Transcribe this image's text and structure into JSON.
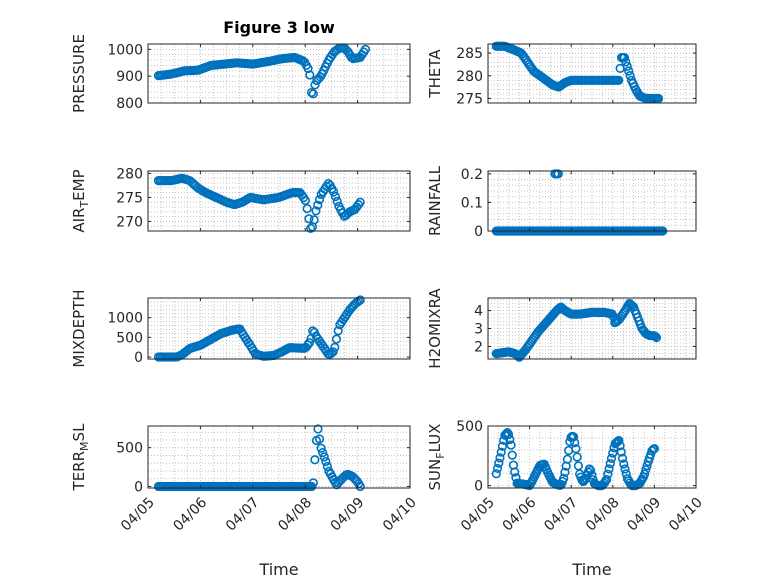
{
  "figure": {
    "title": "Figure 3 low",
    "marker_color": "#0072BD"
  },
  "chart_data": [
    {
      "type": "scatter",
      "title": "Figure 3 low",
      "ylabel": "PRESSURE",
      "ylabel_sub": "",
      "ylabel_end": "",
      "xlabel": "",
      "xlim": [
        0,
        5
      ],
      "ylim": [
        800,
        1020
      ],
      "yticks": [
        800,
        900,
        1000
      ],
      "show_xticklabels": false,
      "grid": true,
      "x_unit": "days since 04/05",
      "knots": [
        [
          0.2,
          902
        ],
        [
          0.45,
          908
        ],
        [
          0.7,
          920
        ],
        [
          0.95,
          922
        ],
        [
          1.2,
          940
        ],
        [
          1.45,
          945
        ],
        [
          1.7,
          950
        ],
        [
          2.0,
          945
        ],
        [
          2.3,
          955
        ],
        [
          2.55,
          965
        ],
        [
          2.8,
          970
        ],
        [
          2.98,
          955
        ],
        [
          3.08,
          920
        ],
        [
          3.12,
          840
        ],
        [
          3.14,
          820
        ],
        [
          3.2,
          880
        ],
        [
          3.3,
          900
        ],
        [
          3.45,
          960
        ],
        [
          3.55,
          990
        ],
        [
          3.65,
          1005
        ],
        [
          3.75,
          1005
        ],
        [
          3.82,
          990
        ],
        [
          3.9,
          965
        ],
        [
          4.05,
          970
        ],
        [
          4.15,
          1000
        ]
      ],
      "x_start": 0.2,
      "x_end": 4.15,
      "count": 120
    },
    {
      "type": "scatter",
      "title": "",
      "ylabel": "THETA",
      "ylabel_sub": "",
      "ylabel_end": "",
      "xlabel": "",
      "xlim": [
        0,
        5
      ],
      "ylim": [
        274,
        287
      ],
      "yticks": [
        275,
        280,
        285
      ],
      "show_xticklabels": false,
      "grid": true,
      "knots": [
        [
          0.2,
          286.5
        ],
        [
          0.4,
          286.5
        ],
        [
          0.6,
          285.8
        ],
        [
          0.8,
          285
        ],
        [
          0.95,
          283
        ],
        [
          1.1,
          281
        ],
        [
          1.25,
          280
        ],
        [
          1.4,
          279
        ],
        [
          1.55,
          278
        ],
        [
          1.7,
          277.5
        ],
        [
          1.85,
          278.5
        ],
        [
          2.0,
          279
        ],
        [
          2.2,
          279
        ],
        [
          2.5,
          279
        ],
        [
          2.8,
          279
        ],
        [
          3.0,
          279
        ],
        [
          3.15,
          279
        ],
        [
          3.2,
          284
        ],
        [
          3.28,
          284
        ],
        [
          3.35,
          282
        ],
        [
          3.45,
          279
        ],
        [
          3.55,
          277
        ],
        [
          3.65,
          275.5
        ],
        [
          3.8,
          275
        ],
        [
          3.95,
          275
        ],
        [
          4.1,
          275
        ]
      ],
      "x_start": 0.2,
      "x_end": 4.1,
      "count": 115
    },
    {
      "type": "scatter",
      "title": "",
      "ylabel": "AIR",
      "ylabel_sub": "T",
      "ylabel_end": "EMP",
      "xlabel": "",
      "xlim": [
        0,
        5
      ],
      "ylim": [
        268,
        280.5
      ],
      "yticks": [
        270,
        275,
        280
      ],
      "show_xticklabels": false,
      "grid": true,
      "knots": [
        [
          0.2,
          278.5
        ],
        [
          0.45,
          278.5
        ],
        [
          0.65,
          279
        ],
        [
          0.8,
          278.5
        ],
        [
          0.95,
          277
        ],
        [
          1.1,
          276
        ],
        [
          1.3,
          275
        ],
        [
          1.5,
          274
        ],
        [
          1.65,
          273.5
        ],
        [
          1.8,
          274
        ],
        [
          1.95,
          275
        ],
        [
          2.2,
          274.5
        ],
        [
          2.5,
          275
        ],
        [
          2.75,
          276
        ],
        [
          2.9,
          276
        ],
        [
          3.0,
          274.5
        ],
        [
          3.05,
          272
        ],
        [
          3.1,
          268.5
        ],
        [
          3.15,
          269
        ],
        [
          3.2,
          272
        ],
        [
          3.3,
          275.5
        ],
        [
          3.45,
          278
        ],
        [
          3.55,
          276
        ],
        [
          3.65,
          273
        ],
        [
          3.75,
          271
        ],
        [
          3.85,
          272
        ],
        [
          3.95,
          272.5
        ],
        [
          4.05,
          274
        ]
      ],
      "x_start": 0.2,
      "x_end": 4.05,
      "count": 115
    },
    {
      "type": "scatter",
      "title": "",
      "ylabel": "RAINFALL",
      "ylabel_sub": "",
      "ylabel_end": "",
      "xlabel": "",
      "xlim": [
        0,
        5
      ],
      "ylim": [
        0,
        0.21
      ],
      "yticks": [
        0,
        0.1,
        0.2
      ],
      "show_xticklabels": false,
      "grid": true,
      "knots": [
        [
          0.2,
          0
        ],
        [
          1.6,
          0
        ],
        [
          4.2,
          0
        ]
      ],
      "x_start": 0.2,
      "x_end": 4.2,
      "count": 130,
      "extra_points": [
        [
          1.61,
          0.2
        ],
        [
          1.65,
          0.2
        ],
        [
          1.69,
          0.2
        ]
      ]
    },
    {
      "type": "scatter",
      "title": "",
      "ylabel": "MIXDEPTH",
      "ylabel_sub": "",
      "ylabel_end": "",
      "xlabel": "",
      "xlim": [
        0,
        5
      ],
      "ylim": [
        -50,
        1500
      ],
      "yticks": [
        0,
        500,
        1000
      ],
      "show_xticklabels": false,
      "grid": true,
      "knots": [
        [
          0.2,
          0
        ],
        [
          0.55,
          0
        ],
        [
          0.65,
          60
        ],
        [
          0.8,
          220
        ],
        [
          1.0,
          300
        ],
        [
          1.2,
          450
        ],
        [
          1.4,
          600
        ],
        [
          1.6,
          680
        ],
        [
          1.75,
          720
        ],
        [
          1.85,
          500
        ],
        [
          1.95,
          300
        ],
        [
          2.05,
          80
        ],
        [
          2.2,
          20
        ],
        [
          2.4,
          40
        ],
        [
          2.55,
          130
        ],
        [
          2.7,
          240
        ],
        [
          2.85,
          230
        ],
        [
          3.0,
          220
        ],
        [
          3.1,
          400
        ],
        [
          3.15,
          700
        ],
        [
          3.22,
          500
        ],
        [
          3.3,
          350
        ],
        [
          3.38,
          200
        ],
        [
          3.45,
          50
        ],
        [
          3.55,
          150
        ],
        [
          3.65,
          800
        ],
        [
          3.75,
          1000
        ],
        [
          3.85,
          1200
        ],
        [
          3.95,
          1350
        ],
        [
          4.05,
          1450
        ]
      ],
      "x_start": 0.2,
      "x_end": 4.05,
      "count": 120
    },
    {
      "type": "scatter",
      "title": "",
      "ylabel": "H2OMIXRA",
      "ylabel_sub": "",
      "ylabel_end": "",
      "xlabel": "",
      "xlim": [
        0,
        5
      ],
      "ylim": [
        1.3,
        4.7
      ],
      "yticks": [
        2,
        3,
        4
      ],
      "show_xticklabels": false,
      "grid": true,
      "knots": [
        [
          0.2,
          1.6
        ],
        [
          0.5,
          1.7
        ],
        [
          0.65,
          1.6
        ],
        [
          0.75,
          1.4
        ],
        [
          0.9,
          1.8
        ],
        [
          1.05,
          2.3
        ],
        [
          1.2,
          2.8
        ],
        [
          1.35,
          3.2
        ],
        [
          1.5,
          3.6
        ],
        [
          1.65,
          4.0
        ],
        [
          1.75,
          4.2
        ],
        [
          1.85,
          4.0
        ],
        [
          2.0,
          3.8
        ],
        [
          2.2,
          3.8
        ],
        [
          2.5,
          3.9
        ],
        [
          2.8,
          3.9
        ],
        [
          3.0,
          3.8
        ],
        [
          3.05,
          3.3
        ],
        [
          3.15,
          3.5
        ],
        [
          3.3,
          4.0
        ],
        [
          3.4,
          4.4
        ],
        [
          3.5,
          4.2
        ],
        [
          3.6,
          3.6
        ],
        [
          3.7,
          3.0
        ],
        [
          3.8,
          2.7
        ],
        [
          3.9,
          2.6
        ],
        [
          4.0,
          2.6
        ],
        [
          4.05,
          2.5
        ]
      ],
      "x_start": 0.2,
      "x_end": 4.05,
      "count": 120
    },
    {
      "type": "scatter",
      "title": "",
      "ylabel": "TERR",
      "ylabel_sub": "M",
      "ylabel_end": "SL",
      "xlabel": "Time",
      "xlim": [
        0,
        5
      ],
      "ylim": [
        -20,
        780
      ],
      "yticks": [
        0,
        500
      ],
      "show_xticklabels": true,
      "grid": true,
      "xticks": [
        0,
        1,
        2,
        3,
        4,
        5
      ],
      "xticklabels": [
        "04/05",
        "04/06",
        "04/07",
        "04/08",
        "04/09",
        "04/10"
      ],
      "knots": [
        [
          0.2,
          0
        ],
        [
          3.15,
          0
        ],
        [
          3.2,
          500
        ],
        [
          3.24,
          760
        ],
        [
          3.3,
          500
        ],
        [
          3.38,
          350
        ],
        [
          3.45,
          200
        ],
        [
          3.55,
          80
        ],
        [
          3.6,
          20
        ],
        [
          3.7,
          100
        ],
        [
          3.8,
          160
        ],
        [
          3.9,
          130
        ],
        [
          4.0,
          60
        ],
        [
          4.05,
          0
        ]
      ],
      "x_start": 0.2,
      "x_end": 4.05,
      "count": 130
    },
    {
      "type": "scatter",
      "title": "",
      "ylabel": "SUN",
      "ylabel_sub": "F",
      "ylabel_end": "LUX",
      "xlabel": "Time",
      "xlim": [
        0,
        5
      ],
      "ylim": [
        -20,
        500
      ],
      "yticks": [
        0,
        500
      ],
      "show_xticklabels": true,
      "grid": true,
      "xticks": [
        0,
        1,
        2,
        3,
        4,
        5
      ],
      "xticklabels": [
        "04/05",
        "04/06",
        "04/07",
        "04/08",
        "04/09",
        "04/10"
      ],
      "knots": [
        [
          0.2,
          100
        ],
        [
          0.3,
          250
        ],
        [
          0.4,
          420
        ],
        [
          0.48,
          450
        ],
        [
          0.55,
          350
        ],
        [
          0.62,
          150
        ],
        [
          0.7,
          20
        ],
        [
          0.9,
          10
        ],
        [
          1.0,
          0
        ],
        [
          1.05,
          30
        ],
        [
          1.15,
          100
        ],
        [
          1.25,
          170
        ],
        [
          1.35,
          180
        ],
        [
          1.45,
          100
        ],
        [
          1.55,
          30
        ],
        [
          1.65,
          10
        ],
        [
          1.75,
          0
        ],
        [
          1.82,
          60
        ],
        [
          1.9,
          200
        ],
        [
          1.98,
          400
        ],
        [
          2.05,
          420
        ],
        [
          2.12,
          300
        ],
        [
          2.2,
          100
        ],
        [
          2.28,
          30
        ],
        [
          2.35,
          60
        ],
        [
          2.45,
          150
        ],
        [
          2.55,
          20
        ],
        [
          2.65,
          0
        ],
        [
          2.75,
          0
        ],
        [
          2.85,
          50
        ],
        [
          2.95,
          200
        ],
        [
          3.05,
          350
        ],
        [
          3.15,
          380
        ],
        [
          3.25,
          200
        ],
        [
          3.35,
          60
        ],
        [
          3.45,
          0
        ],
        [
          3.55,
          0
        ],
        [
          3.65,
          20
        ],
        [
          3.75,
          80
        ],
        [
          3.85,
          200
        ],
        [
          3.95,
          300
        ],
        [
          4.0,
          310
        ]
      ],
      "x_start": 0.2,
      "x_end": 4.0,
      "count": 130
    }
  ]
}
